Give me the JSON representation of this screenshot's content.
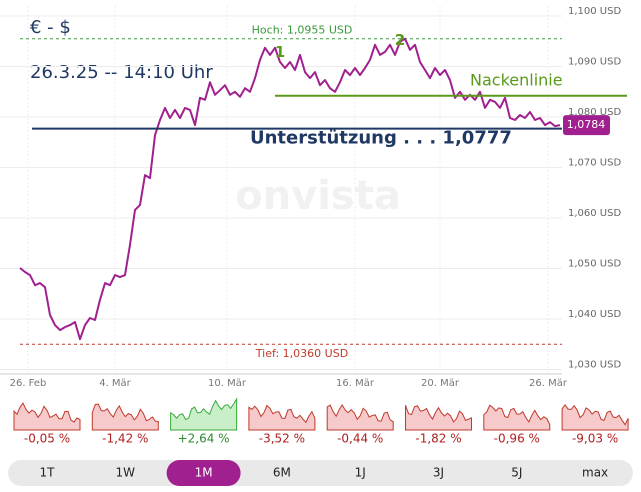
{
  "chart_data": {
    "type": "line",
    "title": "€ - $",
    "subtitle": "26.3.25 -- 14:10 Uhr",
    "watermark": "onvista",
    "xlim": [
      0,
      108
    ],
    "xticks": [
      {
        "value": 1.6,
        "label": "26. Feb"
      },
      {
        "value": 19,
        "label": "4. Mär"
      },
      {
        "value": 41.4,
        "label": "10. Mär"
      },
      {
        "value": 67,
        "label": "16. Mär"
      },
      {
        "value": 84,
        "label": "20. Mär"
      },
      {
        "value": 105.6,
        "label": "26. Mär"
      }
    ],
    "ylim": [
      1.03,
      1.1
    ],
    "yticks": [
      {
        "value": 1.03,
        "label": "1,030 USD"
      },
      {
        "value": 1.04,
        "label": "1,040 USD"
      },
      {
        "value": 1.05,
        "label": "1,050 USD"
      },
      {
        "value": 1.06,
        "label": "1,060 USD"
      },
      {
        "value": 1.07,
        "label": "1,070 USD"
      },
      {
        "value": 1.08,
        "label": "1,080 USD"
      },
      {
        "value": 1.09,
        "label": "1,090 USD"
      },
      {
        "value": 1.1,
        "label": "1,100 USD"
      }
    ],
    "grid": true,
    "series": [
      {
        "color": "#a0208f",
        "values": [
          1.0501,
          1.0493,
          1.0487,
          1.0467,
          1.0471,
          1.0463,
          1.0408,
          1.0388,
          1.0378,
          1.0384,
          1.0388,
          1.0394,
          1.036,
          1.0388,
          1.0402,
          1.0398,
          1.0438,
          1.0471,
          1.0467,
          1.0487,
          1.0483,
          1.0487,
          1.0547,
          1.0616,
          1.0626,
          1.0685,
          1.0679,
          1.0764,
          1.0794,
          1.0818,
          1.0798,
          1.0814,
          1.0798,
          1.0818,
          1.0814,
          1.0784,
          1.0838,
          1.0834,
          1.0869,
          1.0844,
          1.0853,
          1.0863,
          1.0844,
          1.085,
          1.084,
          1.0857,
          1.085,
          1.0877,
          1.0913,
          1.0937,
          1.0923,
          1.0937,
          1.0909,
          1.0897,
          1.0909,
          1.0893,
          1.0923,
          1.0889,
          1.0877,
          1.0889,
          1.0863,
          1.0873,
          1.0857,
          1.085,
          1.0869,
          1.0893,
          1.0883,
          1.0897,
          1.0883,
          1.0897,
          1.0913,
          1.0943,
          1.0923,
          1.0929,
          1.0943,
          1.0923,
          1.0949,
          1.0955,
          1.0933,
          1.0943,
          1.0909,
          1.0893,
          1.0877,
          1.0897,
          1.0883,
          1.0893,
          1.0873,
          1.0838,
          1.085,
          1.0834,
          1.0844,
          1.0834,
          1.085,
          1.0818,
          1.0834,
          1.083,
          1.0818,
          1.0838,
          1.0798,
          1.0794,
          1.0804,
          1.0798,
          1.081,
          1.0794,
          1.0798,
          1.0784,
          1.079,
          1.0782,
          1.0784
        ]
      }
    ],
    "last_value": {
      "value": 1.0784,
      "label": "1,0784"
    },
    "high": {
      "value": 1.0955,
      "label": "Hoch: 1,0955 USD"
    },
    "low": {
      "value": 1.036,
      "label": "Tief: 1,0360 USD"
    },
    "support": {
      "value": 1.0777,
      "label": "Unterstützung . . . 1,0777"
    },
    "neckline": {
      "value": 1.0842,
      "label": "Nackenlinie"
    },
    "peaks": [
      {
        "x": 52,
        "label": "1"
      },
      {
        "x": 76,
        "label": "2"
      }
    ]
  },
  "periods": [
    {
      "label": "1T",
      "change": {
        "value": -0.05,
        "label": "-0,05 %"
      }
    },
    {
      "label": "1W",
      "change": {
        "value": -1.42,
        "label": "-1,42 %"
      }
    },
    {
      "label": "1M",
      "change": {
        "value": 2.64,
        "label": "+2,64 %"
      }
    },
    {
      "label": "6M",
      "change": {
        "value": -3.52,
        "label": "-3,52 %"
      }
    },
    {
      "label": "1J",
      "change": {
        "value": -0.44,
        "label": "-0,44 %"
      }
    },
    {
      "label": "3J",
      "change": {
        "value": -1.82,
        "label": "-1,82 %"
      }
    },
    {
      "label": "5J",
      "change": {
        "value": -0.96,
        "label": "-0,96 %"
      }
    },
    {
      "label": "max",
      "change": {
        "value": -9.03,
        "label": "-9,03 %"
      }
    }
  ],
  "active_period": 2
}
